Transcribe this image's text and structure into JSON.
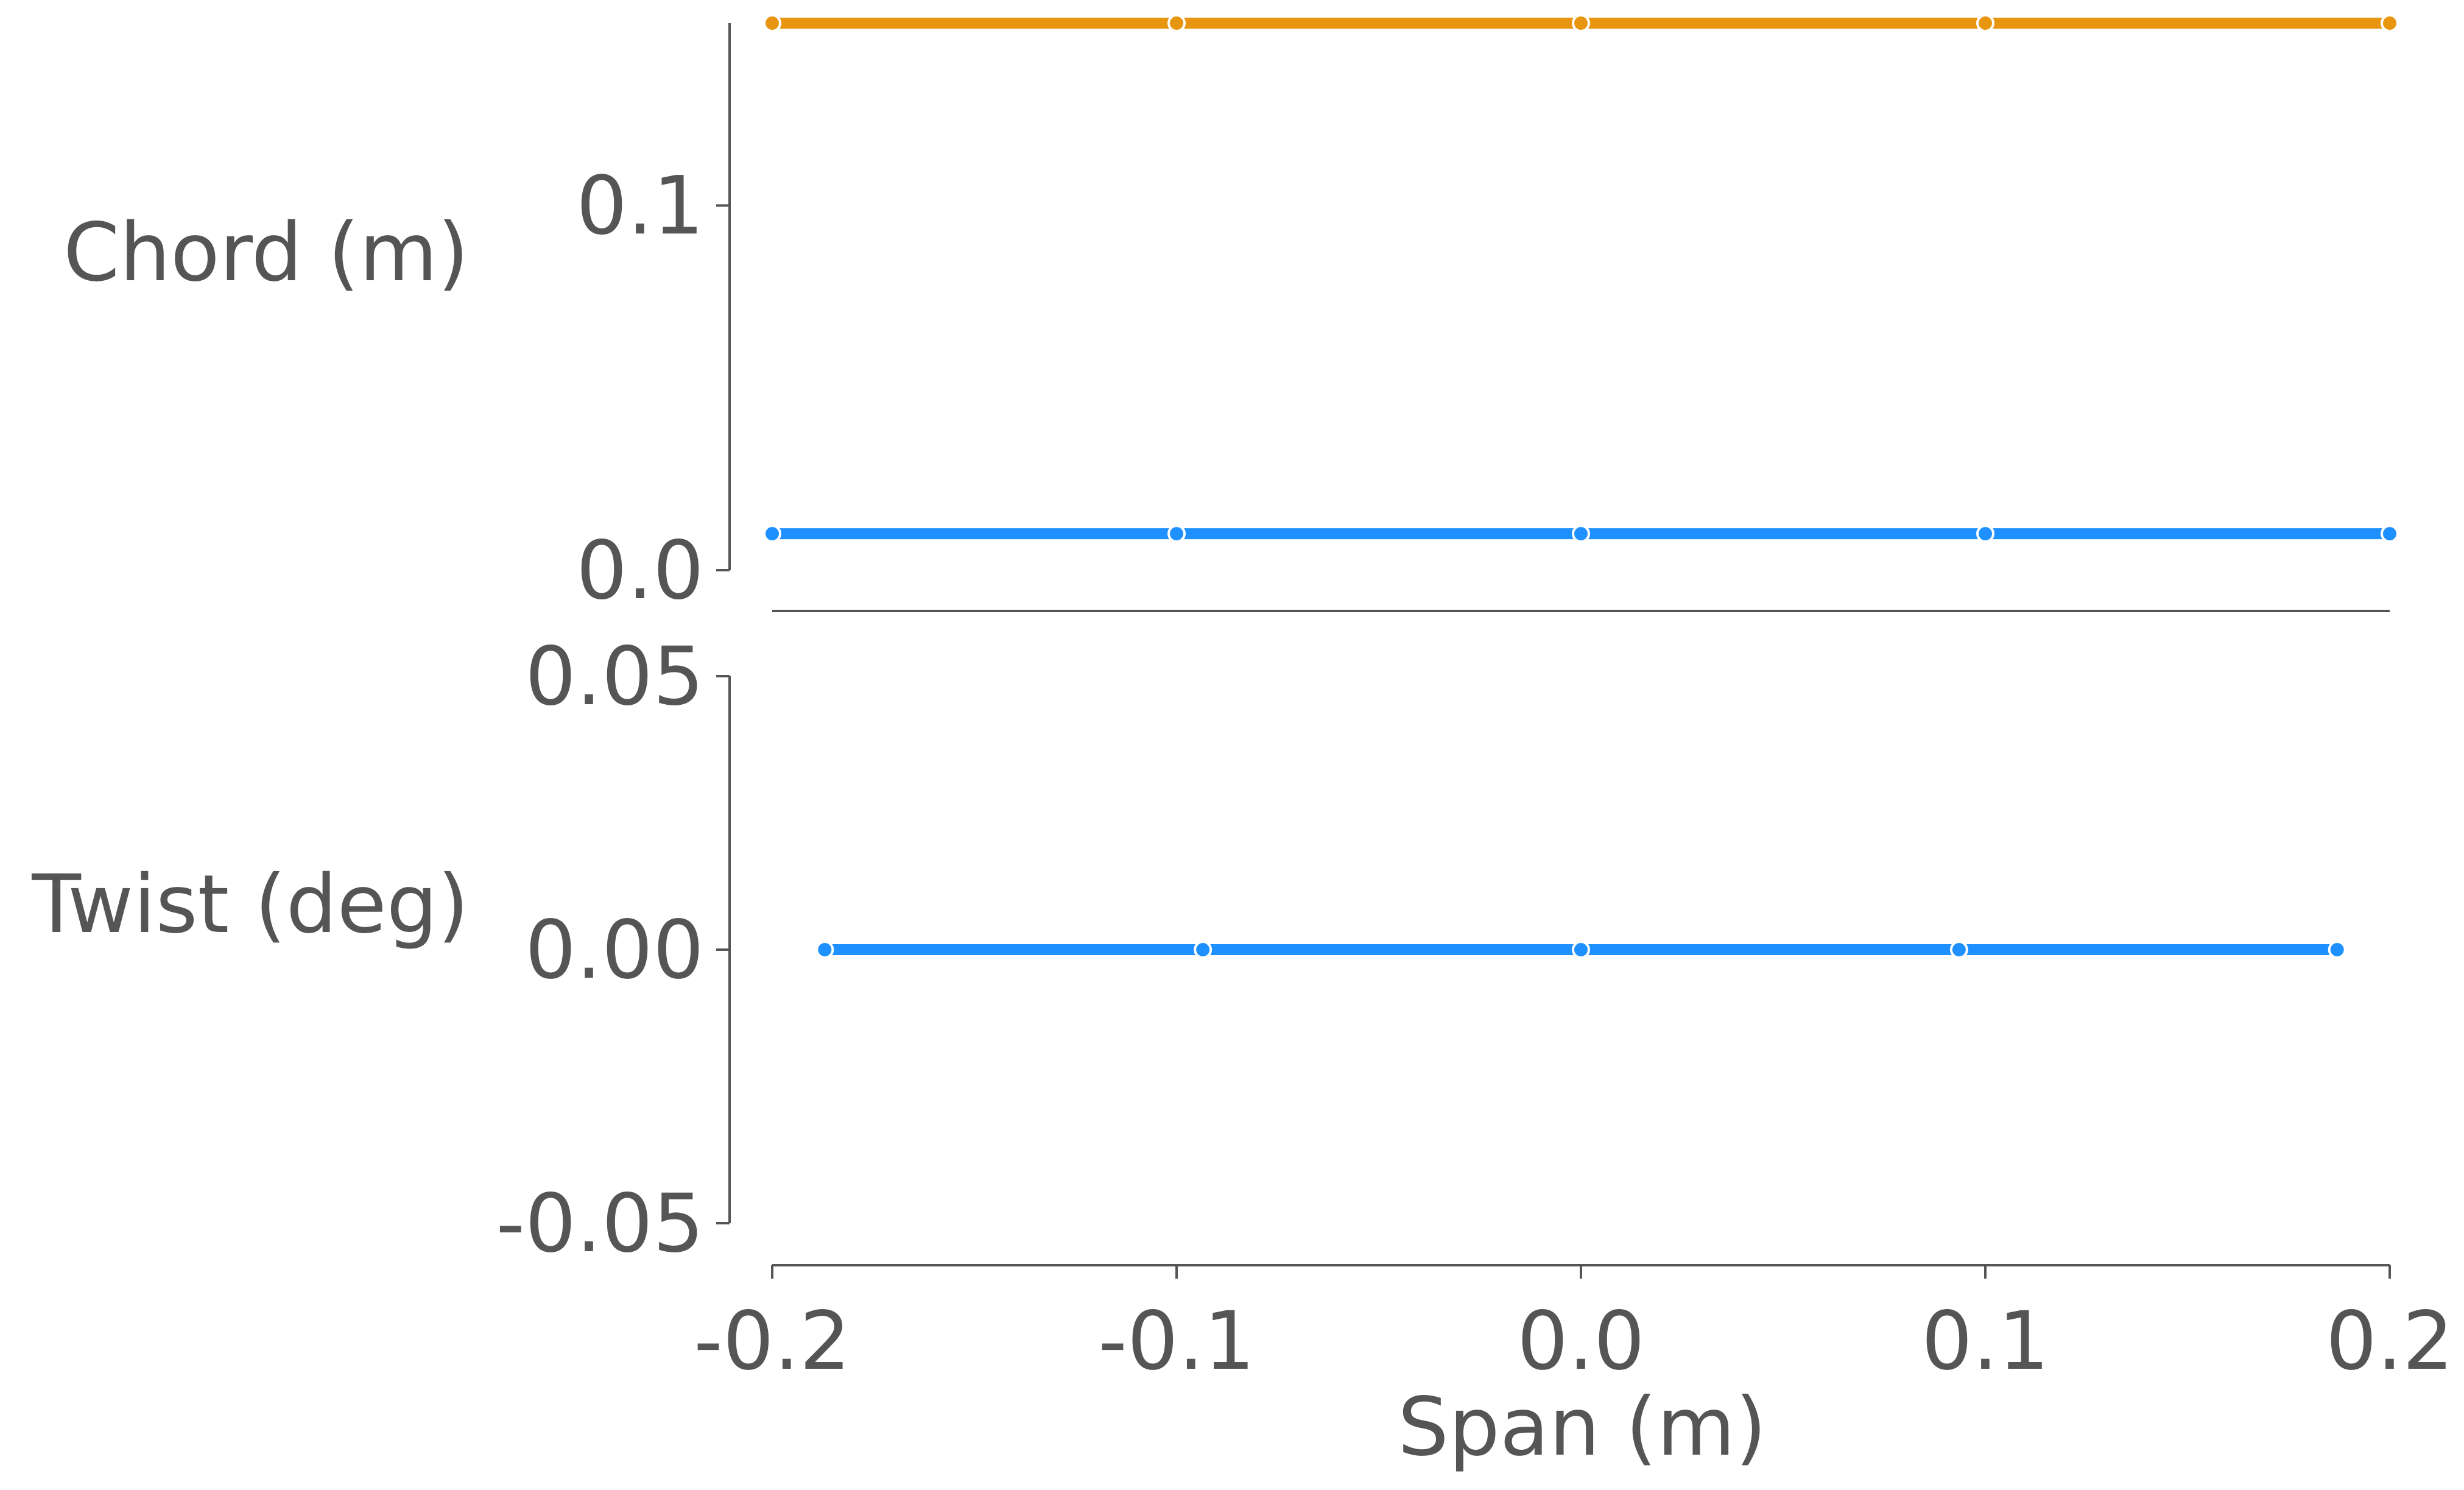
{
  "chart_data": [
    {
      "type": "line",
      "ylabel": "Chord (m)",
      "xlabel": "",
      "xlim": [
        -0.2,
        0.2
      ],
      "ylim": [
        0.0,
        0.15
      ],
      "yticks": [
        0.0,
        0.1
      ],
      "ytick_labels": [
        "0.0",
        "0.1"
      ],
      "xticks": [],
      "xtick_labels": [],
      "grid": false,
      "series": [
        {
          "color": "#E8950F",
          "x": [
            -0.2,
            -0.1,
            0.0,
            0.1,
            0.2
          ],
          "y": [
            0.15,
            0.15,
            0.15,
            0.15,
            0.15
          ]
        },
        {
          "color": "#1E90FF",
          "x": [
            -0.2,
            -0.1,
            0.0,
            0.1,
            0.2
          ],
          "y": [
            0.01,
            0.01,
            0.01,
            0.01,
            0.01
          ]
        }
      ]
    },
    {
      "type": "line",
      "ylabel": "Twist (deg)",
      "xlabel": "Span (m)",
      "xlim": [
        -0.2,
        0.2
      ],
      "ylim": [
        -0.05,
        0.05
      ],
      "yticks": [
        -0.05,
        0.0,
        0.05
      ],
      "ytick_labels": [
        "-0.05",
        "0.00",
        "0.05"
      ],
      "xticks": [
        -0.2,
        -0.1,
        0.0,
        0.1,
        0.2
      ],
      "xtick_labels": [
        "-0.2",
        "-0.1",
        "0.0",
        "0.1",
        "0.2"
      ],
      "grid": false,
      "series": [
        {
          "color": "#1E90FF",
          "x": [
            -0.187,
            -0.0935,
            0.0,
            0.0935,
            0.187
          ],
          "y": [
            0.0,
            0.0,
            0.0,
            0.0,
            0.0
          ]
        }
      ]
    }
  ]
}
